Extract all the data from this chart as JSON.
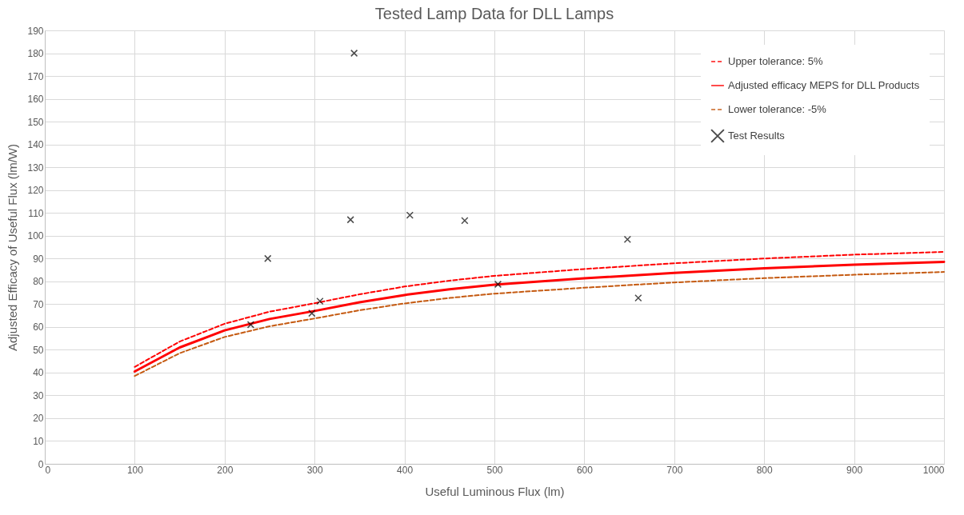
{
  "chart_data": {
    "type": "line",
    "title": "Tested Lamp Data for DLL Lamps",
    "xlabel": "Useful  Luminous Flux (lm)",
    "ylabel": "Adjusted Efficacy of Useful Flux (lm/W)",
    "xlim": [
      0,
      1000
    ],
    "xticks": [
      0,
      100,
      200,
      300,
      400,
      500,
      600,
      700,
      800,
      900,
      1000
    ],
    "ylim": [
      0,
      190
    ],
    "yticks": [
      0,
      10,
      20,
      30,
      40,
      50,
      60,
      70,
      80,
      90,
      100,
      110,
      120,
      130,
      140,
      150,
      160,
      170,
      180,
      190
    ],
    "grid": true,
    "legend": "top right",
    "series": [
      {
        "type": "line",
        "name": "Upper tolerance: 5%",
        "color": "#ff0000",
        "line_style": "dashed",
        "x": [
          100,
          150,
          200,
          250,
          300,
          350,
          400,
          450,
          500,
          600,
          700,
          800,
          900,
          1000
        ],
        "values": [
          42.5,
          53.6,
          61.4,
          66.7,
          70.4,
          74.3,
          77.7,
          80.3,
          82.4,
          85.4,
          87.9,
          90,
          91.7,
          92.9
        ]
      },
      {
        "type": "line",
        "name": "Adjusted efficacy MEPS for DLL Products",
        "color": "#ff0000",
        "line_style": "solid",
        "x": [
          100,
          150,
          200,
          250,
          300,
          350,
          400,
          450,
          500,
          600,
          700,
          800,
          900,
          1000
        ],
        "values": [
          40.5,
          51,
          58.5,
          63.5,
          67,
          70.8,
          74,
          76.5,
          78.5,
          81.3,
          83.7,
          85.7,
          87.3,
          88.5
        ]
      },
      {
        "type": "line",
        "name": "Lower tolerance: -5%",
        "color": "#c55a11",
        "line_style": "dashed",
        "x": [
          100,
          150,
          200,
          250,
          300,
          350,
          400,
          450,
          500,
          600,
          700,
          800,
          900,
          1000
        ],
        "values": [
          38.5,
          48.5,
          55.6,
          60.3,
          63.7,
          67.3,
          70.3,
          72.7,
          74.6,
          77.2,
          79.5,
          81.4,
          82.9,
          84.1
        ]
      },
      {
        "type": "scatter",
        "name": "Test Results",
        "color": "#000000",
        "marker": "cross",
        "x": [
          229,
          248,
          297,
          306,
          340,
          344,
          406,
          467,
          504,
          648,
          660
        ],
        "values": [
          61,
          90,
          66,
          71.3,
          107,
          180,
          109,
          106.6,
          78.7,
          98.4,
          72.7
        ]
      }
    ]
  }
}
